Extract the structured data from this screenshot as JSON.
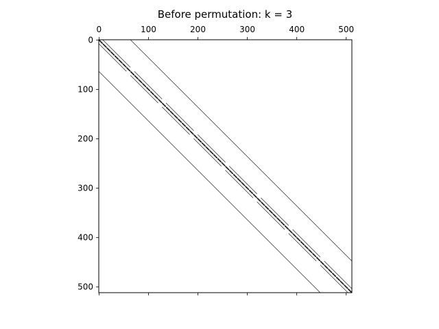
{
  "chart_data": {
    "type": "spy",
    "title": "Before permutation: k = 3",
    "matrix_size": 512,
    "x_ticks": [
      "0",
      "100",
      "200",
      "300",
      "400",
      "500"
    ],
    "y_ticks": [
      "0",
      "100",
      "200",
      "300",
      "400",
      "500"
    ],
    "xlim": [
      -0.5,
      511.5
    ],
    "ylim": [
      511.5,
      -0.5
    ],
    "x_axis_position": "top",
    "grid": false,
    "marker_color": "#000000",
    "diagonal_offsets": [
      -64,
      -8,
      -1,
      0,
      1,
      8,
      64
    ]
  }
}
